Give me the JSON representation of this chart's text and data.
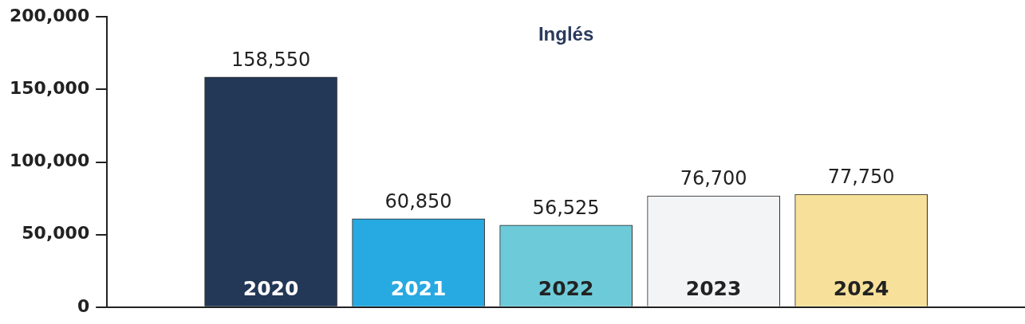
{
  "chart_data": {
    "type": "bar",
    "title": "Inglés",
    "categories": [
      "2020",
      "2021",
      "2022",
      "2023",
      "2024"
    ],
    "values": [
      158550,
      60850,
      56525,
      76700,
      77750
    ],
    "colors": [
      "#233756",
      "#27a9e1",
      "#6dcbd9",
      "#f3f4f6",
      "#f7e19a"
    ],
    "value_labels": [
      "158,550",
      "60,850",
      "56,525",
      "76,700",
      "77,750"
    ],
    "ylim": [
      0,
      200000
    ],
    "yticks": [
      0,
      {
        "value": 50000,
        "label": "50,000"
      },
      {
        "value": 100000,
        "label": "100,000"
      },
      {
        "value": 150000,
        "label": "150,000"
      },
      {
        "value": 200000,
        "label": "200,000"
      }
    ],
    "grid": false,
    "legend": false
  }
}
